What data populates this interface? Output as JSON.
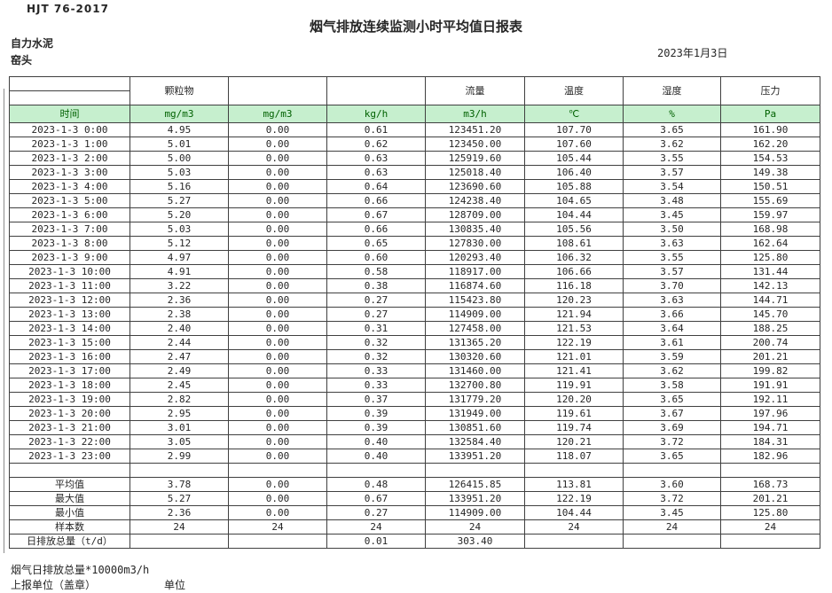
{
  "page": {
    "standard": "HJT  76-2017",
    "title": "烟气排放连续监测小时平均值日报表",
    "company": "自力水泥",
    "location": "窑头",
    "date": "2023年1月3日"
  },
  "table": {
    "colors": {
      "unit_row_bg": "#c6efce",
      "unit_row_text": "#006100",
      "border": "#404040"
    },
    "header_groups": [
      "",
      "颗粒物",
      "",
      "",
      "流量",
      "温度",
      "湿度",
      "压力"
    ],
    "unit_row": [
      "时间",
      "mg/m3",
      "mg/m3",
      "kg/h",
      "m3/h",
      "℃",
      "%",
      "Pa"
    ],
    "rows": [
      [
        "2023-1-3 0:00",
        "4.95",
        "0.00",
        "0.61",
        "123451.20",
        "107.70",
        "3.65",
        "161.90"
      ],
      [
        "2023-1-3 1:00",
        "5.01",
        "0.00",
        "0.62",
        "123450.00",
        "107.60",
        "3.62",
        "162.20"
      ],
      [
        "2023-1-3 2:00",
        "5.00",
        "0.00",
        "0.63",
        "125919.60",
        "105.44",
        "3.55",
        "154.53"
      ],
      [
        "2023-1-3 3:00",
        "5.03",
        "0.00",
        "0.63",
        "125018.40",
        "106.40",
        "3.57",
        "149.38"
      ],
      [
        "2023-1-3 4:00",
        "5.16",
        "0.00",
        "0.64",
        "123690.60",
        "105.88",
        "3.54",
        "150.51"
      ],
      [
        "2023-1-3 5:00",
        "5.27",
        "0.00",
        "0.66",
        "124238.40",
        "104.65",
        "3.48",
        "155.69"
      ],
      [
        "2023-1-3 6:00",
        "5.20",
        "0.00",
        "0.67",
        "128709.00",
        "104.44",
        "3.45",
        "159.97"
      ],
      [
        "2023-1-3 7:00",
        "5.03",
        "0.00",
        "0.66",
        "130835.40",
        "105.56",
        "3.50",
        "168.98"
      ],
      [
        "2023-1-3 8:00",
        "5.12",
        "0.00",
        "0.65",
        "127830.00",
        "108.61",
        "3.63",
        "162.64"
      ],
      [
        "2023-1-3 9:00",
        "4.97",
        "0.00",
        "0.60",
        "120293.40",
        "106.32",
        "3.55",
        "125.80"
      ],
      [
        "2023-1-3 10:00",
        "4.91",
        "0.00",
        "0.58",
        "118917.00",
        "106.66",
        "3.57",
        "131.44"
      ],
      [
        "2023-1-3 11:00",
        "3.22",
        "0.00",
        "0.38",
        "116874.60",
        "116.18",
        "3.70",
        "142.13"
      ],
      [
        "2023-1-3 12:00",
        "2.36",
        "0.00",
        "0.27",
        "115423.80",
        "120.23",
        "3.63",
        "144.71"
      ],
      [
        "2023-1-3 13:00",
        "2.38",
        "0.00",
        "0.27",
        "114909.00",
        "121.94",
        "3.66",
        "145.70"
      ],
      [
        "2023-1-3 14:00",
        "2.40",
        "0.00",
        "0.31",
        "127458.00",
        "121.53",
        "3.64",
        "188.25"
      ],
      [
        "2023-1-3 15:00",
        "2.44",
        "0.00",
        "0.32",
        "131365.20",
        "122.19",
        "3.61",
        "200.74"
      ],
      [
        "2023-1-3 16:00",
        "2.47",
        "0.00",
        "0.32",
        "130320.60",
        "121.01",
        "3.59",
        "201.21"
      ],
      [
        "2023-1-3 17:00",
        "2.49",
        "0.00",
        "0.33",
        "131460.00",
        "121.41",
        "3.62",
        "199.82"
      ],
      [
        "2023-1-3 18:00",
        "2.45",
        "0.00",
        "0.33",
        "132700.80",
        "119.91",
        "3.58",
        "191.91"
      ],
      [
        "2023-1-3 19:00",
        "2.82",
        "0.00",
        "0.37",
        "131779.20",
        "120.20",
        "3.65",
        "192.11"
      ],
      [
        "2023-1-3 20:00",
        "2.95",
        "0.00",
        "0.39",
        "131949.00",
        "119.61",
        "3.67",
        "197.96"
      ],
      [
        "2023-1-3 21:00",
        "3.01",
        "0.00",
        "0.39",
        "130851.60",
        "119.74",
        "3.69",
        "194.71"
      ],
      [
        "2023-1-3 22:00",
        "3.05",
        "0.00",
        "0.40",
        "132584.40",
        "120.21",
        "3.72",
        "184.31"
      ],
      [
        "2023-1-3 23:00",
        "2.99",
        "0.00",
        "0.40",
        "133951.20",
        "118.07",
        "3.65",
        "182.96"
      ]
    ],
    "summary_rows": [
      [
        "平均值",
        "3.78",
        "0.00",
        "0.48",
        "126415.85",
        "113.81",
        "3.60",
        "168.73"
      ],
      [
        "最大值",
        "5.27",
        "0.00",
        "0.67",
        "133951.20",
        "122.19",
        "3.72",
        "201.21"
      ],
      [
        "最小值",
        "2.36",
        "0.00",
        "0.27",
        "114909.00",
        "104.44",
        "3.45",
        "125.80"
      ],
      [
        "样本数",
        "24",
        "24",
        "24",
        "24",
        "24",
        "24",
        "24"
      ],
      [
        "日排放总量（t/d）",
        "",
        "",
        "0.01",
        "303.40",
        "",
        "",
        ""
      ]
    ]
  },
  "footer": {
    "note": "烟气日排放总量*10000m3/h",
    "stamp_label": "上报单位（盖章）",
    "unit_label": "单位"
  }
}
